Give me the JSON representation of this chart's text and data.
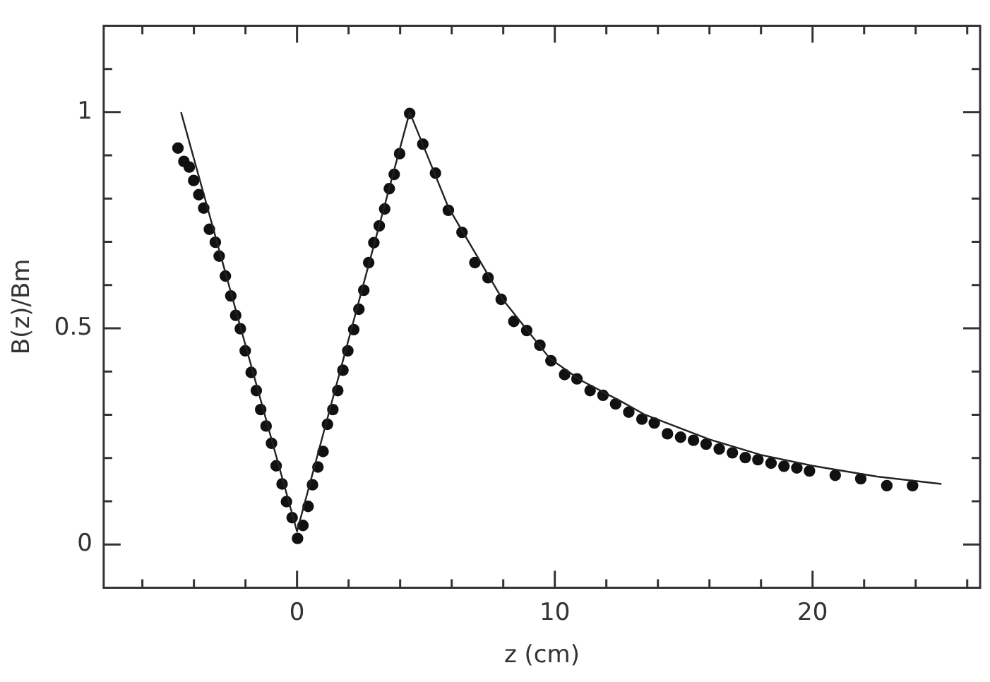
{
  "chart_data": {
    "type": "scatter",
    "xlabel": "z (cm)",
    "ylabel": "B(z)/Bm",
    "xlim": [
      -7.5,
      26.5
    ],
    "ylim": [
      -0.1,
      1.2
    ],
    "xticks": [
      {
        "value": -6,
        "label": null
      },
      {
        "value": -4,
        "label": null
      },
      {
        "value": -2,
        "label": null
      },
      0,
      {
        "value": 2,
        "label": null
      },
      {
        "value": 4,
        "label": null
      },
      {
        "value": 6,
        "label": null
      },
      {
        "value": 8,
        "label": null
      },
      10,
      {
        "value": 12,
        "label": null
      },
      {
        "value": 14,
        "label": null
      },
      {
        "value": 16,
        "label": null
      },
      {
        "value": 18,
        "label": null
      },
      20,
      {
        "value": 22,
        "label": null
      },
      {
        "value": 24,
        "label": null
      },
      {
        "value": 26,
        "label": null
      }
    ],
    "yticks": [
      0,
      {
        "value": 0.1,
        "label": null
      },
      {
        "value": 0.2,
        "label": null
      },
      {
        "value": 0.3,
        "label": null
      },
      {
        "value": 0.4,
        "label": null
      },
      0.5,
      {
        "value": 0.6,
        "label": null
      },
      {
        "value": 0.7,
        "label": null
      },
      {
        "value": 0.8,
        "label": null
      },
      {
        "value": 0.9,
        "label": null
      },
      1,
      {
        "value": 1.1,
        "label": null
      }
    ],
    "grid": false,
    "legend": false,
    "series": [
      {
        "type": "scatter",
        "marker": "circle",
        "color": "#111111",
        "x": [
          -4.62,
          -4.39,
          -4.18,
          -4.01,
          -3.81,
          -3.62,
          -3.4,
          -3.17,
          -3.02,
          -2.78,
          -2.57,
          -2.38,
          -2.2,
          -2.01,
          -1.78,
          -1.58,
          -1.41,
          -1.2,
          -0.99,
          -0.81,
          -0.58,
          -0.41,
          -0.19,
          0.02,
          0.23,
          0.43,
          0.6,
          0.81,
          1.01,
          1.18,
          1.39,
          1.58,
          1.78,
          1.97,
          2.2,
          2.4,
          2.59,
          2.78,
          2.98,
          3.19,
          3.4,
          3.58,
          3.77,
          3.98,
          4.37,
          4.88,
          5.37,
          5.87,
          6.4,
          6.9,
          7.41,
          7.92,
          8.41,
          8.91,
          9.42,
          9.85,
          10.38,
          10.86,
          11.37,
          11.87,
          12.36,
          12.87,
          13.38,
          13.86,
          14.37,
          14.88,
          15.38,
          15.87,
          16.38,
          16.89,
          17.39,
          17.88,
          18.39,
          18.89,
          19.39,
          19.88,
          20.88,
          21.87,
          22.88,
          23.88
        ],
        "values": [
          0.917,
          0.886,
          0.873,
          0.842,
          0.809,
          0.778,
          0.729,
          0.699,
          0.667,
          0.621,
          0.575,
          0.53,
          0.499,
          0.448,
          0.398,
          0.356,
          0.312,
          0.274,
          0.234,
          0.182,
          0.14,
          0.099,
          0.062,
          0.014,
          0.044,
          0.088,
          0.138,
          0.179,
          0.215,
          0.278,
          0.312,
          0.356,
          0.403,
          0.448,
          0.497,
          0.544,
          0.588,
          0.652,
          0.698,
          0.737,
          0.776,
          0.823,
          0.856,
          0.904,
          0.997,
          0.926,
          0.859,
          0.773,
          0.722,
          0.652,
          0.617,
          0.567,
          0.516,
          0.495,
          0.461,
          0.425,
          0.393,
          0.383,
          0.356,
          0.345,
          0.325,
          0.306,
          0.29,
          0.281,
          0.256,
          0.248,
          0.241,
          0.232,
          0.221,
          0.212,
          0.201,
          0.196,
          0.188,
          0.181,
          0.177,
          0.17,
          0.16,
          0.152,
          0.136,
          0.136
        ]
      },
      {
        "type": "line",
        "marker": "none",
        "line_style": "solid",
        "color": "#222222",
        "x": [
          -4.5,
          0,
          4.37,
          5.87,
          7.94,
          9.81,
          11,
          12.6,
          13.5,
          16,
          18,
          20,
          22.5,
          25
        ],
        "values": [
          1.0,
          0.03,
          1.0,
          0.78,
          0.57,
          0.43,
          0.38,
          0.33,
          0.3,
          0.243,
          0.207,
          0.182,
          0.157,
          0.14
        ]
      }
    ]
  }
}
